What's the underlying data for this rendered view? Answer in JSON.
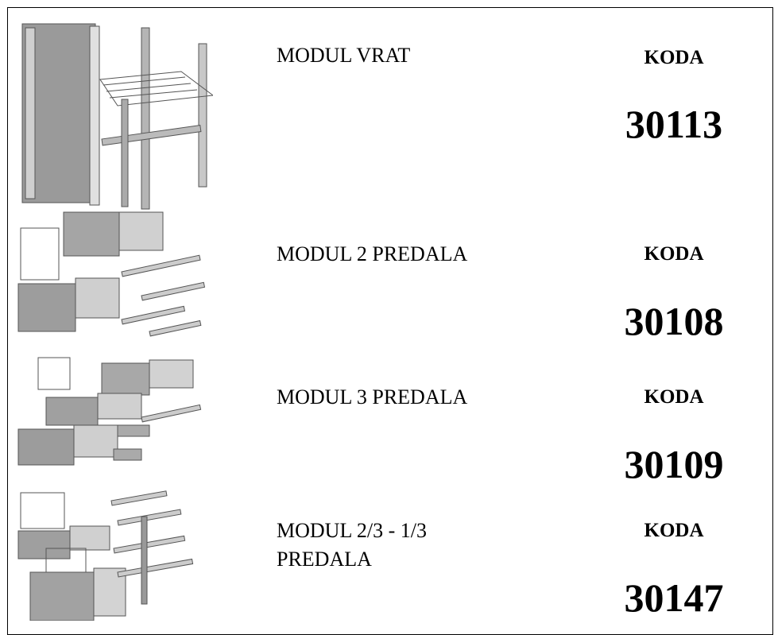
{
  "rows": [
    {
      "name": "MODUL VRAT",
      "code_label": "KODA",
      "code": "30113"
    },
    {
      "name": "MODUL 2 PREDALA",
      "code_label": "KODA",
      "code": "30108"
    },
    {
      "name": "MODUL 3 PREDALA",
      "code_label": "KODA",
      "code": "30109"
    },
    {
      "name": "MODUL 2/3 - 1/3 PREDALA",
      "code_label": "KODA",
      "code": "30147"
    }
  ]
}
